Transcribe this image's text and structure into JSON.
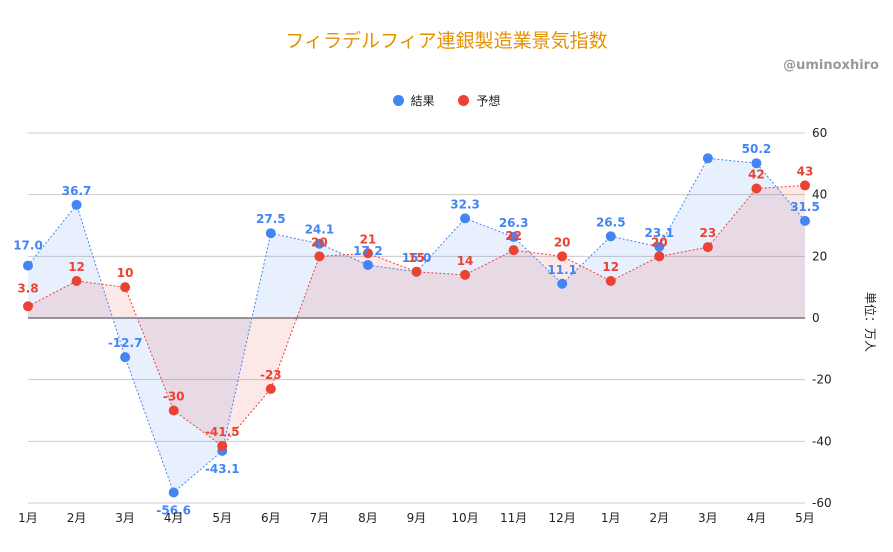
{
  "title": "フィラデルフィア連銀製造業景気指数",
  "watermark": "@uminoxhiro",
  "colors": {
    "result": "#4285f4",
    "forecast": "#ea4335",
    "title": "#e69100"
  },
  "legend": {
    "result_label": "結果",
    "forecast_label": "予想"
  },
  "chart_data": {
    "type": "line",
    "title": "フィラデルフィア連銀製造業景気指数",
    "categories": [
      "1月",
      "2月",
      "3月",
      "4月",
      "5月",
      "6月",
      "7月",
      "8月",
      "9月",
      "10月",
      "11月",
      "12月",
      "1月",
      "2月",
      "3月",
      "4月",
      "5月"
    ],
    "series": [
      {
        "name": "結果",
        "values": [
          17.0,
          36.7,
          -12.7,
          -56.6,
          -43.1,
          27.5,
          24.1,
          17.2,
          15.0,
          32.3,
          26.3,
          11.1,
          26.5,
          23.1,
          51.8,
          50.2,
          31.5
        ],
        "labels": [
          "17.0",
          "36.7",
          "-12.7",
          "-56.6",
          "-43.1",
          "27.5",
          "24.1",
          "17.2",
          "15.0",
          "32.3",
          "26.3",
          "11.1",
          "26.5",
          "23.1",
          "",
          "50.2",
          "31.5"
        ]
      },
      {
        "name": "予想",
        "values": [
          3.8,
          12,
          10,
          -30,
          -41.5,
          -23,
          20,
          21,
          15,
          14,
          22,
          20,
          12,
          20,
          23,
          42,
          43
        ],
        "labels": [
          "3.8",
          "12",
          "10",
          "-30",
          "-41.5",
          "-23",
          "20",
          "21",
          "15",
          "14",
          "22",
          "20",
          "12",
          "20",
          "23",
          "42",
          "43"
        ]
      }
    ],
    "ylim": [
      -60,
      60
    ],
    "yticks": [
      "60",
      "40",
      "20",
      "0",
      "-20",
      "-40",
      "-60"
    ],
    "ylabel": "単位：万人",
    "grid": true,
    "legend_position": "top"
  }
}
